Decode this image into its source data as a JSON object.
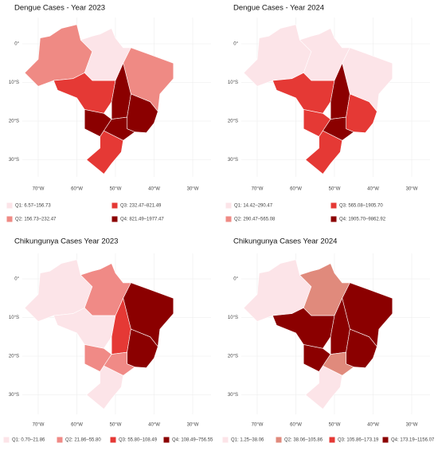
{
  "panels": [
    {
      "title": "Dengue Cases  - Year 2023",
      "legend": [
        {
          "label": "Q1: 6.57–156.73",
          "color": "#fce4e8"
        },
        {
          "label": "Q2: 156.73–232.47",
          "color": "#ef8a84"
        },
        {
          "label": "Q3: 232.47–821.49",
          "color": "#e53935"
        },
        {
          "label": "Q4: 821.49–1977.47",
          "color": "#8b0000"
        }
      ]
    },
    {
      "title": "Dengue Cases  - Year 2024",
      "legend": [
        {
          "label": "Q1: 14.42–290.47",
          "color": "#fce4e8"
        },
        {
          "label": "Q2: 290.47–565.08",
          "color": "#ef8a84"
        },
        {
          "label": "Q3: 565.08–1905.70",
          "color": "#e53935"
        },
        {
          "label": "Q4: 1905.70–9862.92",
          "color": "#8b0000"
        }
      ]
    },
    {
      "title": "Chikungunya Cases Year 2023",
      "legend": [
        {
          "label": "Q1: 0.70–21.86",
          "color": "#fce4e8"
        },
        {
          "label": "Q2: 21.86–55.80",
          "color": "#f08a86"
        },
        {
          "label": "Q3: 55.80–108.49",
          "color": "#e53935"
        },
        {
          "label": "Q4: 108.49–756.55",
          "color": "#8b0000"
        }
      ]
    },
    {
      "title": "Chikungunya Cases Year 2024",
      "legend": [
        {
          "label": "Q1: 1.25–38.06",
          "color": "#fce4e8"
        },
        {
          "label": "Q2: 38.06–105.86",
          "color": "#e08a7c"
        },
        {
          "label": "Q3: 105.86–173.19",
          "color": "#e53935"
        },
        {
          "label": "Q4: 173.19–1156.07",
          "color": "#8b0000"
        }
      ]
    }
  ],
  "lat_labels": [
    "0°",
    "10°S",
    "20°S",
    "30°S"
  ],
  "lon_labels": [
    "70°W",
    "60°W",
    "50°W",
    "40°W",
    "30°W"
  ]
}
